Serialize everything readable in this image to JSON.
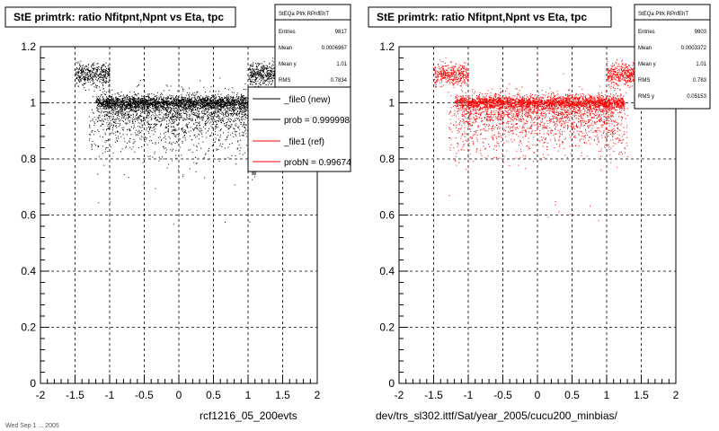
{
  "colors": {
    "new": "#000000",
    "ref": "#ff0000",
    "frame": "#000000",
    "grid": "#000000"
  },
  "left_panel": {
    "title": "StE primtrk: ratio Nfitpnt,Npnt vs Eta, tpc",
    "stats": {
      "name": "StEQa Pfrk RPnfEhT",
      "rows": [
        {
          "label": "Entries",
          "value": "9817"
        },
        {
          "label": "Mean",
          "value": "0.0006967"
        },
        {
          "label": "Mean y",
          "value": "1.01"
        },
        {
          "label": "RMS",
          "value": "0.7834"
        }
      ]
    },
    "legend": [
      {
        "label": "_file0 (new)",
        "color": "#000000"
      },
      {
        "label": "prob = 0.999998",
        "color": "#000000"
      },
      {
        "label": "_file1 (ref)",
        "color": "#ff0000"
      },
      {
        "label": "probN = 0.99674",
        "color": "#ff0000"
      }
    ],
    "footer": "rcf1216_05_200evts"
  },
  "right_panel": {
    "title": "StE primtrk: ratio Nfitpnt,Npnt vs Eta, tpc",
    "stats": {
      "name": "StEQa Pfrk RPnfEhT",
      "rows": [
        {
          "label": "Entries",
          "value": "9803"
        },
        {
          "label": "Mean",
          "value": "0.0003372"
        },
        {
          "label": "Mean y",
          "value": "1.01"
        },
        {
          "label": "RMS",
          "value": "0.783"
        },
        {
          "label": "RMS y",
          "value": "0.05153"
        }
      ]
    },
    "footer": "dev/trs_sl302.ittf/Sat/year_2005/cucu200_minbias/"
  },
  "corner_text": "Wed Sep  1 ... 2005",
  "chart_data": [
    {
      "type": "scatter",
      "title": "StE primtrk: ratio Nfitpnt,Npnt vs Eta, tpc",
      "xlim": [
        -2,
        2
      ],
      "ylim": [
        0,
        1.2
      ],
      "xticks": [
        "-2",
        "-1.5",
        "-1",
        "-0.5",
        "0",
        "0.5",
        "1",
        "1.5",
        "2"
      ],
      "yticks": [
        "0",
        "0.2",
        "0.4",
        "0.6",
        "0.8",
        "1",
        "1.2"
      ],
      "grid": true,
      "color": "#000000",
      "bands": [
        {
          "y": 1.0,
          "x": [
            -1.2,
            1.25
          ],
          "spread": 0.012,
          "weight": 0.45
        },
        {
          "y": 0.97,
          "x": [
            -1.1,
            1.1
          ],
          "spread": 0.03,
          "weight": 0.2
        },
        {
          "y": 1.1,
          "x": [
            -1.5,
            -1.0
          ],
          "spread": 0.02,
          "weight": 0.08
        },
        {
          "y": 1.1,
          "x": [
            1.0,
            1.45
          ],
          "spread": 0.02,
          "weight": 0.08
        },
        {
          "y": 0.92,
          "x": [
            -1.3,
            1.3
          ],
          "spread": 0.06,
          "weight": 0.19
        }
      ]
    },
    {
      "type": "scatter",
      "title": "StE primtrk: ratio Nfitpnt,Npnt vs Eta, tpc",
      "xlim": [
        -2,
        2
      ],
      "ylim": [
        0,
        1.2
      ],
      "xticks": [
        "-2",
        "-1.5",
        "-1",
        "-0.5",
        "0",
        "0.5",
        "1",
        "1.5",
        "2"
      ],
      "yticks": [
        "0",
        "0.2",
        "0.4",
        "0.6",
        "0.8",
        "1",
        "1.2"
      ],
      "grid": true,
      "color": "#ff0000",
      "bands": [
        {
          "y": 1.0,
          "x": [
            -1.2,
            1.25
          ],
          "spread": 0.012,
          "weight": 0.45
        },
        {
          "y": 0.97,
          "x": [
            -1.1,
            1.1
          ],
          "spread": 0.03,
          "weight": 0.2
        },
        {
          "y": 1.1,
          "x": [
            -1.5,
            -1.0
          ],
          "spread": 0.02,
          "weight": 0.08
        },
        {
          "y": 1.1,
          "x": [
            1.0,
            1.45
          ],
          "spread": 0.02,
          "weight": 0.08
        },
        {
          "y": 0.92,
          "x": [
            -1.3,
            1.3
          ],
          "spread": 0.06,
          "weight": 0.19
        }
      ]
    }
  ]
}
